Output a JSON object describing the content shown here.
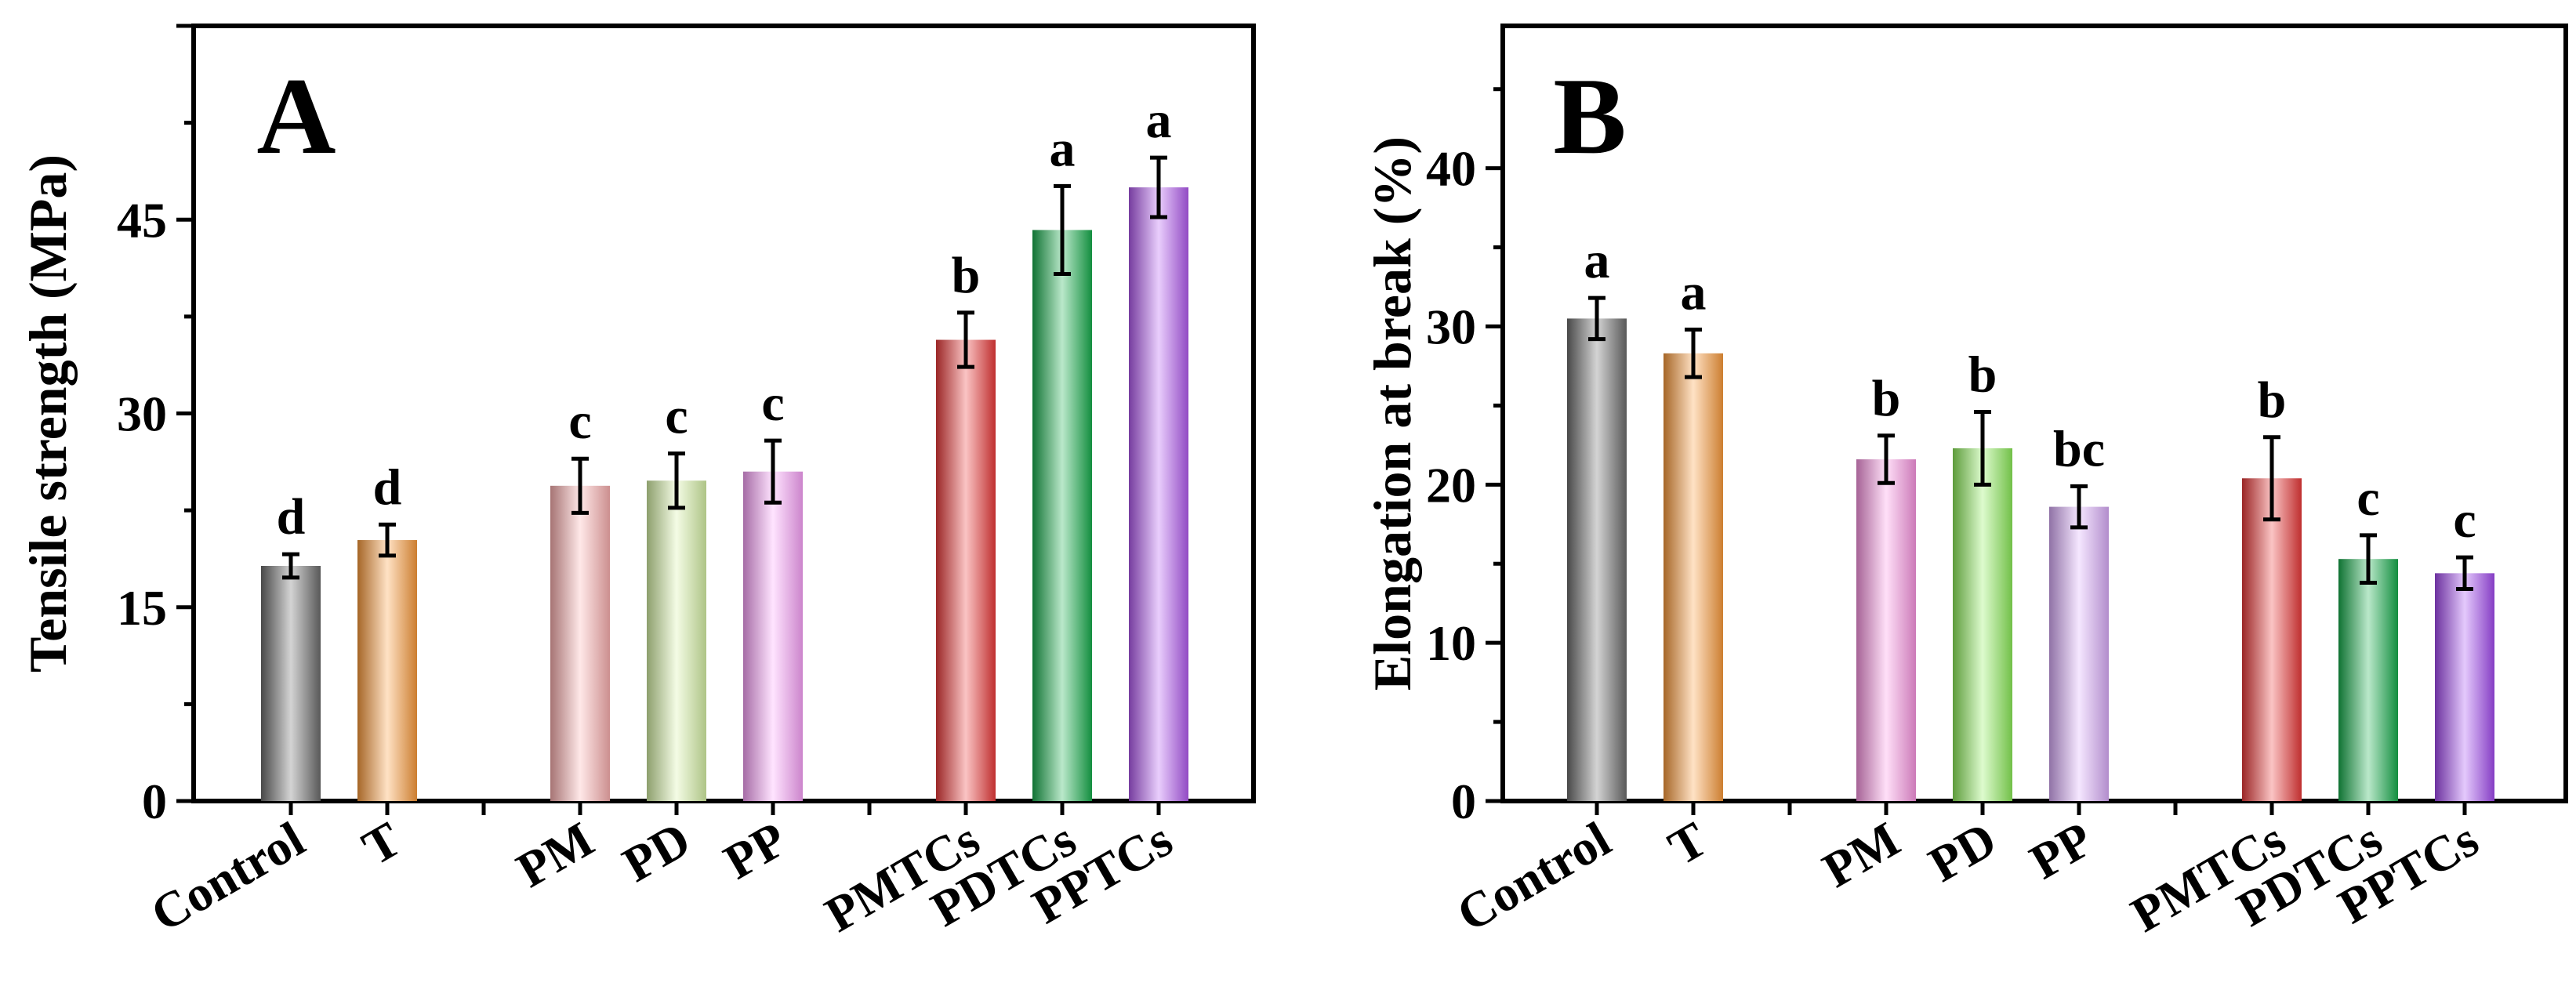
{
  "chart_data": [
    {
      "type": "bar",
      "panel": "A",
      "ylabel": "Tensile strength (MPa)",
      "xlabel": "",
      "ylim": [
        0,
        60
      ],
      "yticks": [
        0,
        15,
        30,
        45
      ],
      "groups": [
        {
          "label": "Control",
          "value": 18.2,
          "error": 0.9,
          "letter": "d",
          "color": "#6e6e6e"
        },
        {
          "label": "T",
          "value": 20.2,
          "error": 1.2,
          "letter": "d",
          "color": "#ff9d3c"
        },
        {
          "label": "",
          "value": null,
          "error": null,
          "letter": "",
          "color": ""
        },
        {
          "label": "PM",
          "value": 24.4,
          "error": 2.1,
          "letter": "c",
          "color": "#ffb3b3"
        },
        {
          "label": "PD",
          "value": 24.8,
          "error": 2.1,
          "letter": "c",
          "color": "#d9f5a8"
        },
        {
          "label": "PP",
          "value": 25.5,
          "error": 2.4,
          "letter": "c",
          "color": "#ffa6ff"
        },
        {
          "label": "",
          "value": null,
          "error": null,
          "letter": "",
          "color": ""
        },
        {
          "label": "PMTCs",
          "value": 35.7,
          "error": 2.1,
          "letter": "b",
          "color": "#ef3b3b"
        },
        {
          "label": "PDTCs",
          "value": 44.2,
          "error": 3.4,
          "letter": "a",
          "color": "#18b14f"
        },
        {
          "label": "PPTCs",
          "value": 47.5,
          "error": 2.3,
          "letter": "a",
          "color": "#b65cf5"
        }
      ]
    },
    {
      "type": "bar",
      "panel": "B",
      "ylabel": "Elongation at break (%)",
      "xlabel": "",
      "ylim": [
        0,
        49
      ],
      "yticks": [
        0,
        10,
        20,
        30,
        40
      ],
      "groups": [
        {
          "label": "Control",
          "value": 30.5,
          "error": 1.3,
          "letter": "a",
          "color": "#6e6e6e"
        },
        {
          "label": "T",
          "value": 28.3,
          "error": 1.5,
          "letter": "a",
          "color": "#ff9d3c"
        },
        {
          "label": "",
          "value": null,
          "error": null,
          "letter": "",
          "color": ""
        },
        {
          "label": "PM",
          "value": 21.6,
          "error": 1.5,
          "letter": "b",
          "color": "#ff99e6"
        },
        {
          "label": "PD",
          "value": 22.3,
          "error": 2.3,
          "letter": "b",
          "color": "#8ff05a"
        },
        {
          "label": "PP",
          "value": 18.6,
          "error": 1.3,
          "letter": "bc",
          "color": "#deb0ff"
        },
        {
          "label": "",
          "value": null,
          "error": null,
          "letter": "",
          "color": ""
        },
        {
          "label": "PMTCs",
          "value": 20.4,
          "error": 2.6,
          "letter": "b",
          "color": "#ef3b3b"
        },
        {
          "label": "PDTCs",
          "value": 15.3,
          "error": 1.5,
          "letter": "c",
          "color": "#18b14f"
        },
        {
          "label": "PPTCs",
          "value": 14.4,
          "error": 1.0,
          "letter": "c",
          "color": "#a64cf5"
        }
      ]
    }
  ]
}
